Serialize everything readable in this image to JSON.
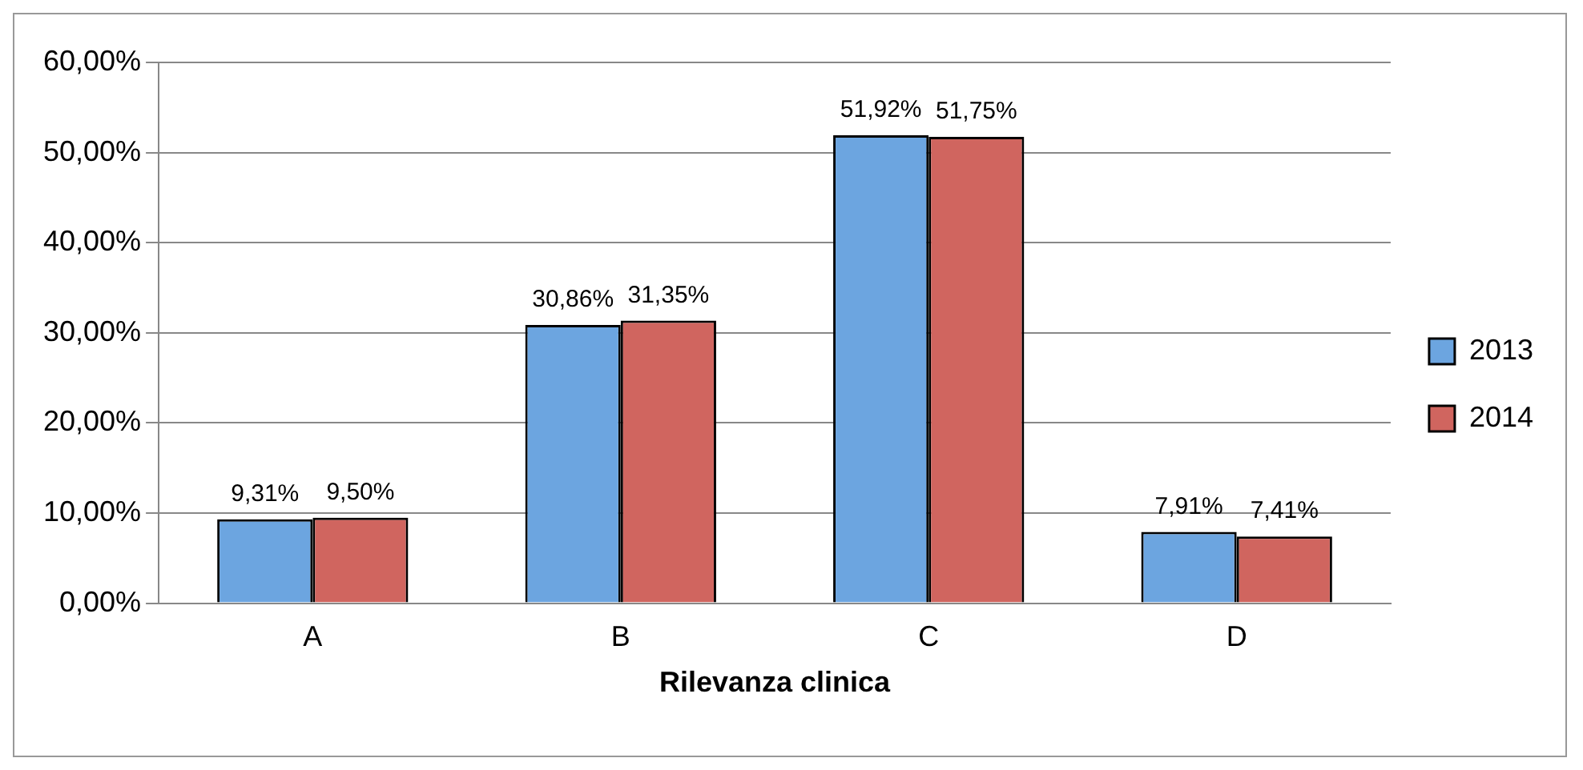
{
  "chart_data": {
    "type": "bar",
    "xlabel": "Rilevanza clinica",
    "categories": [
      "A",
      "B",
      "C",
      "D"
    ],
    "series": [
      {
        "name": "2013",
        "color": "#6ca5e0",
        "values": [
          9.31,
          30.86,
          51.92,
          7.91
        ],
        "value_labels": [
          "9,31%",
          "30,86%",
          "51,92%",
          "7,91%"
        ]
      },
      {
        "name": "2014",
        "color": "#d0655f",
        "values": [
          9.5,
          31.35,
          51.75,
          7.41
        ],
        "value_labels": [
          "9,50%",
          "31,35%",
          "51,75%",
          "7,41%"
        ]
      }
    ],
    "ylim": [
      0,
      60
    ],
    "yticks": [
      {
        "value": 0,
        "label": "0,00%"
      },
      {
        "value": 10,
        "label": "10,00%"
      },
      {
        "value": 20,
        "label": "20,00%"
      },
      {
        "value": 30,
        "label": "30,00%"
      },
      {
        "value": 40,
        "label": "40,00%"
      },
      {
        "value": 50,
        "label": "50,00%"
      },
      {
        "value": 60,
        "label": "60,00%"
      }
    ],
    "grid": "y",
    "legend": "right"
  }
}
